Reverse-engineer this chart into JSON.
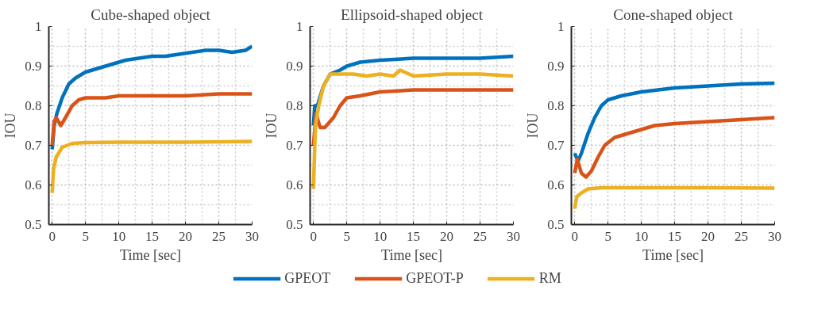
{
  "chart_data": [
    {
      "type": "line",
      "title": "Cube-shaped object",
      "xlabel": "Time [sec]",
      "ylabel": "IOU",
      "xlim": [
        -0.5,
        30
      ],
      "ylim": [
        0.5,
        1
      ],
      "xticks": [
        0,
        5,
        10,
        15,
        20,
        25,
        30
      ],
      "yticks": [
        0.5,
        0.6,
        0.7,
        0.8,
        0.9,
        1
      ],
      "grid": true,
      "line_style": "solid",
      "marker": "none",
      "series": [
        {
          "color": "#0072bd",
          "x": [
            0,
            0.3,
            0.7,
            1.5,
            2.5,
            3.5,
            5,
            7,
            9,
            11,
            13,
            15,
            17,
            19,
            21,
            23,
            25,
            27,
            29,
            30
          ],
          "values": [
            0.69,
            0.75,
            0.78,
            0.82,
            0.855,
            0.87,
            0.885,
            0.895,
            0.905,
            0.915,
            0.92,
            0.925,
            0.925,
            0.93,
            0.935,
            0.94,
            0.94,
            0.935,
            0.94,
            0.95
          ]
        },
        {
          "color": "#d95319",
          "x": [
            0,
            0.3,
            0.6,
            1.3,
            2,
            3,
            4,
            5,
            8,
            10,
            15,
            20,
            25,
            30
          ],
          "values": [
            0.7,
            0.76,
            0.77,
            0.75,
            0.77,
            0.8,
            0.815,
            0.82,
            0.82,
            0.825,
            0.825,
            0.825,
            0.83,
            0.83
          ]
        },
        {
          "color": "#edb120",
          "x": [
            0,
            0.2,
            0.6,
            1.5,
            3,
            5,
            10,
            20,
            30
          ],
          "values": [
            0.58,
            0.64,
            0.67,
            0.695,
            0.705,
            0.707,
            0.708,
            0.708,
            0.71
          ]
        }
      ]
    },
    {
      "type": "line",
      "title": "Ellipsoid-shaped object",
      "xlabel": "Time [sec]",
      "ylabel": "IOU",
      "xlim": [
        -0.5,
        30
      ],
      "ylim": [
        0.5,
        1
      ],
      "xticks": [
        0,
        5,
        10,
        15,
        20,
        25,
        30
      ],
      "yticks": [
        0.5,
        0.6,
        0.7,
        0.8,
        0.9,
        1
      ],
      "grid": true,
      "line_style": "solid",
      "marker": "none",
      "legend": "bottom",
      "series": [
        {
          "name": "GPEOT",
          "color": "#0072bd",
          "x": [
            0,
            0.2,
            0.6,
            1.5,
            2.5,
            4,
            5,
            7,
            10,
            15,
            20,
            25,
            30
          ],
          "values": [
            0.75,
            0.8,
            0.8,
            0.85,
            0.88,
            0.89,
            0.9,
            0.91,
            0.915,
            0.92,
            0.92,
            0.92,
            0.925
          ]
        },
        {
          "name": "GPEOT-P",
          "color": "#d95319",
          "x": [
            0,
            0.4,
            1,
            1.7,
            3,
            4,
            5,
            7,
            10,
            15,
            20,
            25,
            30
          ],
          "values": [
            0.7,
            0.78,
            0.745,
            0.745,
            0.77,
            0.8,
            0.82,
            0.825,
            0.835,
            0.84,
            0.84,
            0.84,
            0.84
          ]
        },
        {
          "name": "RM",
          "color": "#edb120",
          "x": [
            0,
            0.3,
            0.8,
            1.5,
            2.5,
            4,
            6,
            8,
            10,
            12,
            13,
            15,
            20,
            25,
            30
          ],
          "values": [
            0.59,
            0.75,
            0.8,
            0.85,
            0.88,
            0.88,
            0.88,
            0.875,
            0.88,
            0.875,
            0.89,
            0.875,
            0.88,
            0.88,
            0.875
          ]
        }
      ]
    },
    {
      "type": "line",
      "title": "Cone-shaped object",
      "xlabel": "Time [sec]",
      "ylabel": "IOU",
      "xlim": [
        -0.5,
        30
      ],
      "ylim": [
        0.5,
        1
      ],
      "xticks": [
        0,
        5,
        10,
        15,
        20,
        25,
        30
      ],
      "yticks": [
        0.5,
        0.6,
        0.7,
        0.8,
        0.9,
        1
      ],
      "grid": true,
      "line_style": "solid",
      "marker": "none",
      "series": [
        {
          "color": "#0072bd",
          "x": [
            0,
            0.5,
            1,
            2,
            3,
            4,
            5,
            7,
            10,
            15,
            20,
            25,
            30
          ],
          "values": [
            0.68,
            0.66,
            0.68,
            0.73,
            0.77,
            0.8,
            0.815,
            0.825,
            0.835,
            0.845,
            0.85,
            0.855,
            0.857
          ]
        },
        {
          "color": "#d95319",
          "x": [
            0,
            0.4,
            1,
            1.7,
            2.5,
            3.5,
            4.5,
            6,
            8,
            10,
            12,
            15,
            20,
            25,
            30
          ],
          "values": [
            0.63,
            0.665,
            0.63,
            0.62,
            0.635,
            0.67,
            0.7,
            0.72,
            0.73,
            0.74,
            0.75,
            0.755,
            0.76,
            0.765,
            0.77
          ]
        },
        {
          "color": "#edb120",
          "x": [
            0,
            0.3,
            1,
            2,
            4,
            10,
            20,
            30
          ],
          "values": [
            0.54,
            0.57,
            0.58,
            0.59,
            0.593,
            0.593,
            0.593,
            0.592
          ]
        }
      ]
    }
  ]
}
